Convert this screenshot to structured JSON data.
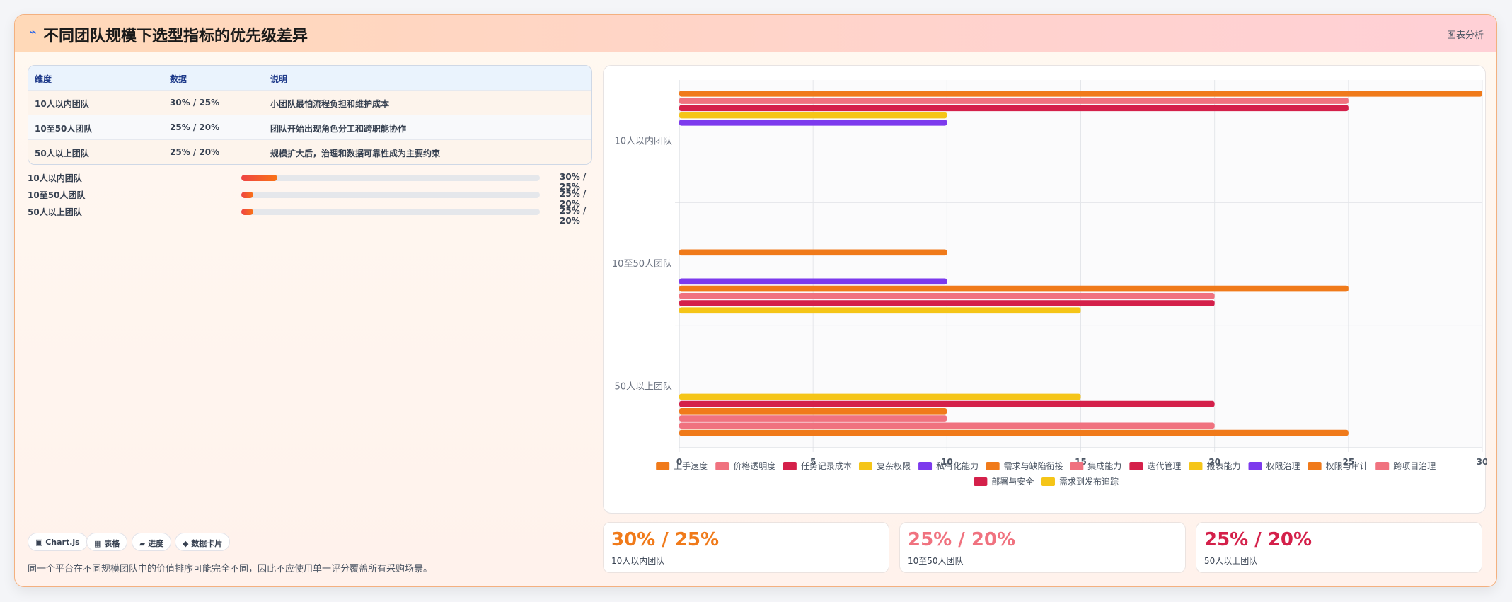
{
  "header": {
    "icon": "lightning-icon",
    "title": "不同团队规模下选型指标的优先级差异",
    "tag": "图表分析"
  },
  "table": {
    "columns": [
      "维度",
      "数据",
      "说明"
    ],
    "rows": [
      [
        "10人以内团队",
        "30% / 25%",
        "小团队最怕流程负担和维护成本"
      ],
      [
        "10至50人团队",
        "25% / 20%",
        "团队开始出现角色分工和跨职能协作"
      ],
      [
        "50人以上团队",
        "25% / 20%",
        "规模扩大后，治理和数据可靠性成为主要约束"
      ]
    ]
  },
  "progress": [
    {
      "label": "10人以内团队",
      "value": "30% / 25%",
      "fill": 0.12
    },
    {
      "label": "10至50人团队",
      "value": "25% / 20%",
      "fill": 0.04
    },
    {
      "label": "50人以上团队",
      "value": "25% / 20%",
      "fill": 0.04
    }
  ],
  "chips": [
    "▣ Chart.js",
    "▦ 表格",
    "▰ 进度",
    "◆ 数据卡片"
  ],
  "footer_note": "同一个平台在不同规模团队中的价值排序可能完全不同，因此不应使用单一评分覆盖所有采购场景。",
  "kpis": [
    {
      "big": "30% / 25%",
      "small": "10人以内团队",
      "color": "#f07a1a"
    },
    {
      "big": "25% / 20%",
      "small": "10至50人团队",
      "color": "#f0727f"
    },
    {
      "big": "25% / 20%",
      "small": "50人以上团队",
      "color": "#d4204a"
    }
  ],
  "chart_data": {
    "type": "bar",
    "orientation": "horizontal",
    "categories": [
      "10人以内团队",
      "10至50人团队",
      "50人以上团队"
    ],
    "xlim": [
      0,
      30
    ],
    "xticks": [
      "0",
      "5",
      "10",
      "15",
      "20",
      "25",
      "30"
    ],
    "grid": true,
    "legend_position": "bottom",
    "series": [
      {
        "name": "上手速度",
        "color": "#f07a1a",
        "values": [
          30,
          null,
          null
        ]
      },
      {
        "name": "价格透明度",
        "color": "#f0727f",
        "values": [
          25,
          null,
          null
        ]
      },
      {
        "name": "任务记录成本",
        "color": "#d4204a",
        "values": [
          25,
          null,
          null
        ]
      },
      {
        "name": "复杂权限",
        "color": "#f5c518",
        "values": [
          10,
          null,
          null
        ]
      },
      {
        "name": "私有化能力",
        "color": "#7c3aed",
        "values": [
          10,
          null,
          null
        ]
      },
      {
        "name": "需求与缺陷衔接",
        "color": "#f07a1a",
        "values": [
          null,
          10,
          null
        ]
      },
      {
        "name": "集成能力",
        "color": "#f0727f",
        "values": [
          null,
          null,
          null
        ]
      },
      {
        "name": "迭代管理",
        "color": "#d4204a",
        "values": [
          null,
          null,
          null
        ]
      },
      {
        "name": "报表能力",
        "color": "#f5c518",
        "values": [
          null,
          null,
          null
        ]
      },
      {
        "name": "权限治理",
        "color": "#7c3aed",
        "values": [
          null,
          null,
          null
        ]
      },
      {
        "name": "权限与审计",
        "color": "#f07a1a",
        "values": [
          null,
          25,
          10
        ]
      },
      {
        "name": "跨项目治理",
        "color": "#f0727f",
        "values": [
          null,
          20,
          10
        ]
      },
      {
        "name": "部署与安全",
        "color": "#d4204a",
        "values": [
          null,
          20,
          null
        ]
      },
      {
        "name": "需求到发布追踪",
        "color": "#f5c518",
        "values": [
          null,
          15,
          null
        ]
      }
    ],
    "extra_bars": [
      {
        "category": "10至50人团队",
        "color": "#7c3aed",
        "value": 10
      },
      {
        "category": "50人以上团队",
        "color": "#f07a1a",
        "value": 25
      },
      {
        "category": "50人以上团队",
        "color": "#f0727f",
        "value": 20
      },
      {
        "category": "50人以上团队",
        "color": "#d4204a",
        "value": 20
      },
      {
        "category": "50人以上团队",
        "color": "#f5c518",
        "value": 15
      }
    ]
  }
}
